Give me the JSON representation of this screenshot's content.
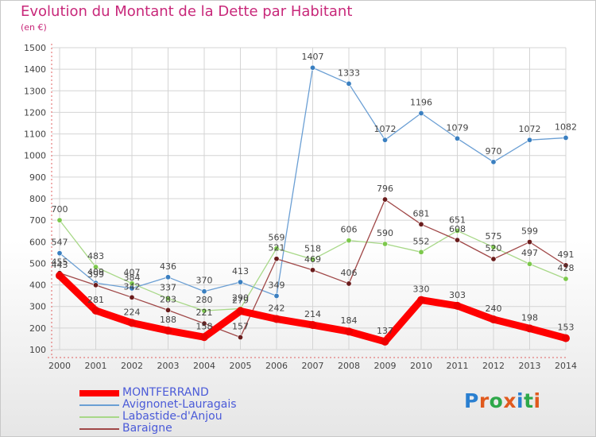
{
  "title": "Evolution du Montant de la Dette par Habitant",
  "unit": "(en €)",
  "logo": {
    "text": "Proxiti",
    "colors": [
      "#2a7fd0",
      "#e05a1e",
      "#2ea84a",
      "#e05a1e",
      "#2a7fd0",
      "#2ea84a",
      "#e05a1e"
    ]
  },
  "chart_data": {
    "type": "line",
    "title": "Evolution du Montant de la Dette par Habitant",
    "xlabel": "",
    "ylabel": "(en €)",
    "ylim": [
      100,
      1500
    ],
    "yticks": [
      100,
      200,
      300,
      400,
      500,
      600,
      700,
      800,
      900,
      1000,
      1100,
      1200,
      1300,
      1400,
      1500
    ],
    "categories": [
      "2000",
      "2001",
      "2002",
      "2003",
      "2004",
      "2005",
      "2006",
      "2007",
      "2008",
      "2009",
      "2010",
      "2011",
      "2012",
      "2013",
      "2014"
    ],
    "grid": true,
    "legend_position": "bottom-left",
    "series": [
      {
        "name": "Avignonet-Lauragais",
        "color": "#6b9fd4",
        "marker_color": "#3a7fc0",
        "values": [
          547,
          409,
          384,
          436,
          370,
          413,
          349,
          1407,
          1333,
          1072,
          1196,
          1079,
          970,
          1072,
          1082
        ]
      },
      {
        "name": "Labastide-d'Anjou",
        "color": "#a8d888",
        "marker_color": "#7cc84c",
        "values": [
          700,
          483,
          407,
          337,
          280,
          290,
          569,
          518,
          606,
          590,
          552,
          651,
          575,
          497,
          428
        ]
      },
      {
        "name": "Baraigne",
        "color": "#a04848",
        "marker_color": "#6a1c1c",
        "values": [
          455,
          399,
          342,
          283,
          221,
          157,
          521,
          469,
          406,
          796,
          681,
          608,
          520,
          599,
          491
        ]
      },
      {
        "name": "MONTFERRAND",
        "color": "#ff0000",
        "marker_color": "#ee0000",
        "values": [
          443,
          281,
          224,
          188,
          158,
          279,
          242,
          214,
          184,
          137,
          330,
          303,
          240,
          198,
          153
        ]
      }
    ]
  }
}
